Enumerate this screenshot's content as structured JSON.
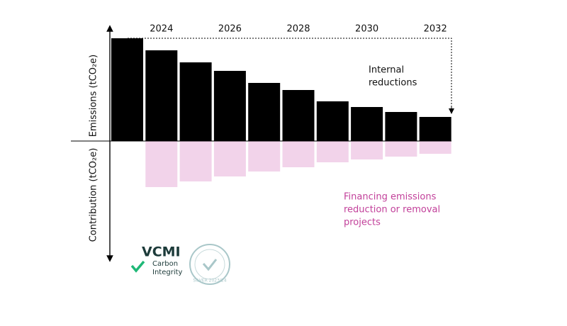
{
  "chart_data": {
    "type": "bar",
    "y_label_top": "Emissions (tCO₂e)",
    "y_label_bottom": "Contribution (tCO₂e)",
    "categories": [
      null,
      "2024",
      null,
      "2026",
      null,
      "2028",
      null,
      "2030",
      null,
      "2032"
    ],
    "series": [
      {
        "color": "#000000",
        "values": [
          145,
          128,
          111,
          99,
          82,
          72,
          56,
          48,
          41,
          34
        ]
      },
      {
        "color": "#f2d3ea",
        "values": [
          null,
          -65,
          -57,
          -50,
          -43,
          -37,
          -30,
          -26,
          -22,
          -18
        ]
      }
    ],
    "ylim": [
      -166,
      159
    ],
    "annotations": [
      {
        "lines": [
          "Internal",
          "reductions"
        ],
        "color": "#111111"
      },
      {
        "lines": [
          "Financing emissions",
          "reduction or removal",
          "projects"
        ],
        "color": "#c2409a"
      }
    ],
    "logo": {
      "name": "VCMI",
      "lines": [
        "Carbon",
        "Integrity"
      ],
      "badge": "SILVER 2023/24"
    }
  }
}
